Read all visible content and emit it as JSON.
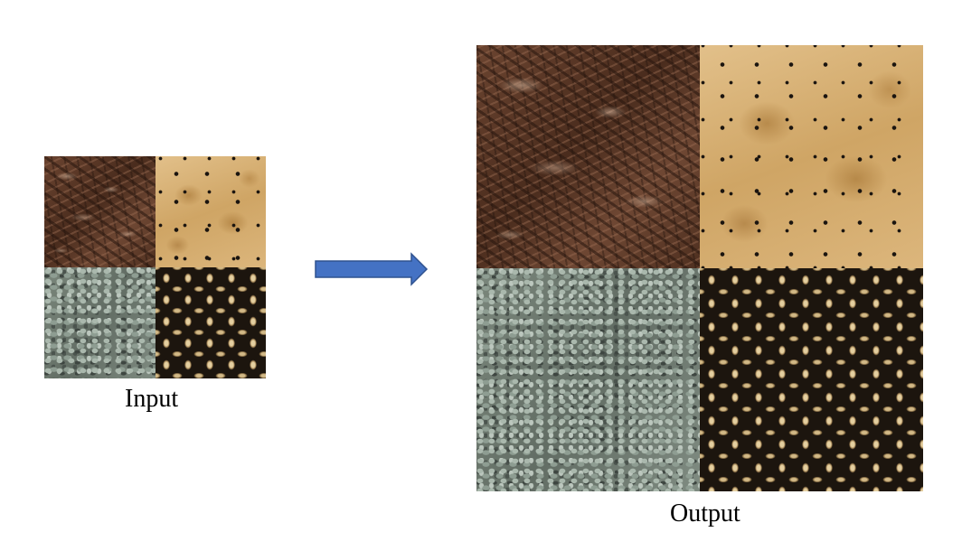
{
  "input": {
    "label": "Input",
    "tiles": [
      "chocolate",
      "cracker",
      "gravel",
      "rope"
    ]
  },
  "output": {
    "label": "Output",
    "tiles": [
      "chocolate",
      "cracker",
      "gravel",
      "rope"
    ]
  },
  "arrow": {
    "icon": "right-arrow-icon",
    "fill": "#4472c4",
    "stroke": "#2f528f"
  }
}
